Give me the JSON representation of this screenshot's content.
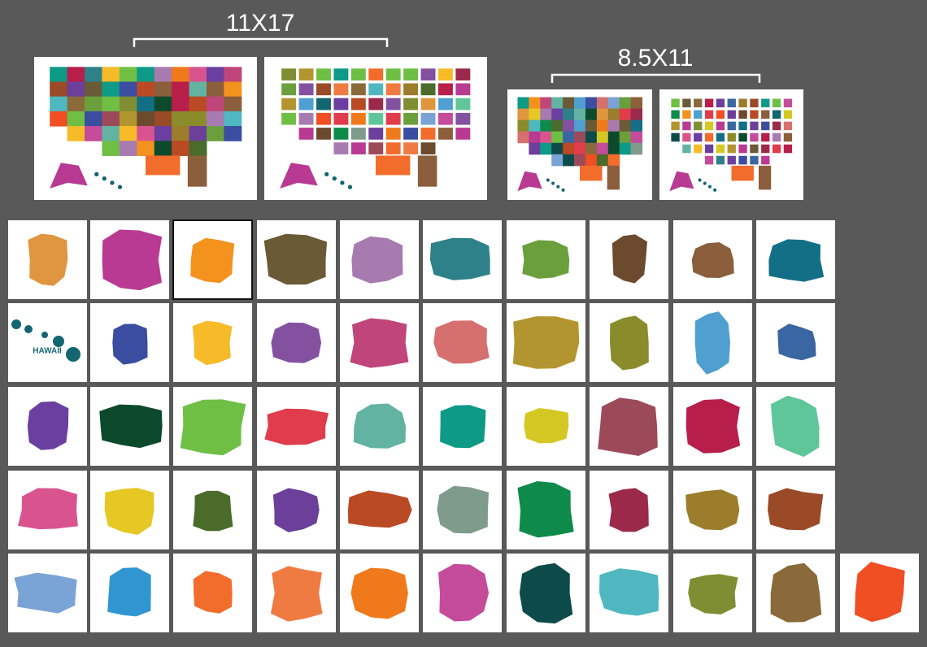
{
  "header": {
    "large_size": "11X17",
    "small_size": "8.5X11"
  },
  "tiles": {
    "hawaii_label": "HAWAII"
  }
}
